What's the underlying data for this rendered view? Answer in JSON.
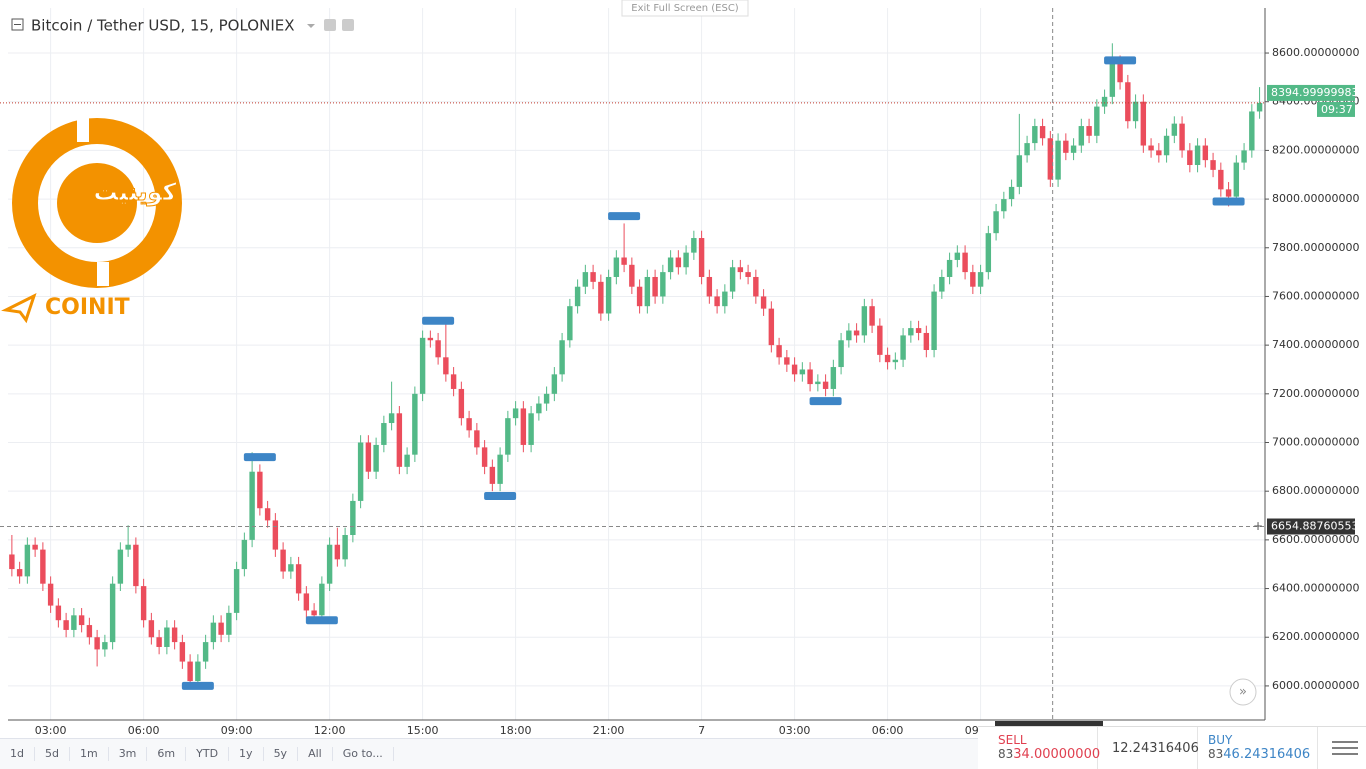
{
  "header": {
    "title": "Bitcoin / Tether USD, 15, POLONIEX",
    "exit_fullscreen": "Exit Full Screen (ESC)"
  },
  "logo": {
    "name": "COINIT",
    "persian": "کوینیت"
  },
  "chart_data": {
    "type": "candlestick",
    "up_color": "#53b987",
    "down_color": "#eb4d5c",
    "marker_color": "#3d85c6",
    "xlim": [
      -0.5,
      161.7
    ],
    "ylim": [
      5860,
      8785
    ],
    "yticks": [
      {
        "value": 6000,
        "label": "6000.00000000"
      },
      {
        "value": 6200,
        "label": "6200.00000000"
      },
      {
        "value": 6400,
        "label": "6400.00000000"
      },
      {
        "value": 6600,
        "label": "6600.00000000"
      },
      {
        "value": 6800,
        "label": "6800.00000000"
      },
      {
        "value": 7000,
        "label": "7000.00000000"
      },
      {
        "value": 7200,
        "label": "7200.00000000"
      },
      {
        "value": 7400,
        "label": "7400.00000000"
      },
      {
        "value": 7600,
        "label": "7600.00000000"
      },
      {
        "value": 7800,
        "label": "7800.00000000"
      },
      {
        "value": 8000,
        "label": "8000.00000000"
      },
      {
        "value": 8200,
        "label": "8200.00000000"
      },
      {
        "value": 8400,
        "label": "8400.00000000"
      },
      {
        "value": 8600,
        "label": "8600.00000000"
      }
    ],
    "xticks": [
      {
        "value": 5,
        "label": "03:00"
      },
      {
        "value": 17,
        "label": "06:00"
      },
      {
        "value": 29,
        "label": "09:00"
      },
      {
        "value": 41,
        "label": "12:00"
      },
      {
        "value": 53,
        "label": "15:00"
      },
      {
        "value": 65,
        "label": "18:00"
      },
      {
        "value": 77,
        "label": "21:00"
      },
      {
        "value": 89,
        "label": "7"
      },
      {
        "value": 101,
        "label": "03:00"
      },
      {
        "value": 113,
        "label": "06:00"
      },
      {
        "value": 125,
        "label": "09:00"
      }
    ],
    "grid": true,
    "last_price": 8394.99999983,
    "countdown": "09:37",
    "crosshair": {
      "price": 6654.88760553,
      "index": 134.3
    },
    "markers": [
      [
        24,
        6000
      ],
      [
        32,
        6940
      ],
      [
        40,
        6270
      ],
      [
        55,
        7500
      ],
      [
        63,
        6780
      ],
      [
        79,
        7930
      ],
      [
        105,
        7170
      ],
      [
        143,
        8570
      ],
      [
        157,
        7990
      ]
    ],
    "candles": [
      [
        6540,
        6620,
        6450,
        6480
      ],
      [
        6480,
        6510,
        6420,
        6450
      ],
      [
        6450,
        6610,
        6420,
        6580
      ],
      [
        6580,
        6610,
        6530,
        6560
      ],
      [
        6560,
        6590,
        6390,
        6420
      ],
      [
        6420,
        6450,
        6300,
        6330
      ],
      [
        6330,
        6360,
        6240,
        6270
      ],
      [
        6270,
        6300,
        6200,
        6230
      ],
      [
        6230,
        6320,
        6200,
        6290
      ],
      [
        6290,
        6320,
        6220,
        6250
      ],
      [
        6250,
        6280,
        6170,
        6200
      ],
      [
        6200,
        6230,
        6080,
        6150
      ],
      [
        6150,
        6210,
        6120,
        6180
      ],
      [
        6180,
        6450,
        6150,
        6420
      ],
      [
        6420,
        6590,
        6390,
        6560
      ],
      [
        6560,
        6660,
        6530,
        6580
      ],
      [
        6580,
        6610,
        6380,
        6410
      ],
      [
        6410,
        6440,
        6240,
        6270
      ],
      [
        6270,
        6300,
        6170,
        6200
      ],
      [
        6200,
        6230,
        6130,
        6160
      ],
      [
        6160,
        6270,
        6130,
        6240
      ],
      [
        6240,
        6270,
        6150,
        6180
      ],
      [
        6180,
        6210,
        6070,
        6100
      ],
      [
        6100,
        6130,
        5990,
        6020
      ],
      [
        6020,
        6130,
        5990,
        6100
      ],
      [
        6100,
        6210,
        6070,
        6180
      ],
      [
        6180,
        6290,
        6150,
        6260
      ],
      [
        6260,
        6290,
        6180,
        6210
      ],
      [
        6210,
        6330,
        6180,
        6300
      ],
      [
        6300,
        6510,
        6270,
        6480
      ],
      [
        6480,
        6630,
        6450,
        6600
      ],
      [
        6600,
        6960,
        6570,
        6880
      ],
      [
        6880,
        6910,
        6700,
        6730
      ],
      [
        6730,
        6760,
        6650,
        6680
      ],
      [
        6680,
        6710,
        6530,
        6560
      ],
      [
        6560,
        6590,
        6440,
        6470
      ],
      [
        6470,
        6530,
        6440,
        6500
      ],
      [
        6500,
        6530,
        6350,
        6380
      ],
      [
        6380,
        6410,
        6280,
        6310
      ],
      [
        6310,
        6340,
        6260,
        6290
      ],
      [
        6290,
        6450,
        6260,
        6420
      ],
      [
        6420,
        6610,
        6390,
        6580
      ],
      [
        6580,
        6650,
        6490,
        6520
      ],
      [
        6520,
        6650,
        6490,
        6620
      ],
      [
        6620,
        6790,
        6590,
        6760
      ],
      [
        6760,
        7030,
        6730,
        7000
      ],
      [
        7000,
        7030,
        6850,
        6880
      ],
      [
        6880,
        7020,
        6850,
        6990
      ],
      [
        6990,
        7110,
        6960,
        7080
      ],
      [
        7080,
        7250,
        7050,
        7120
      ],
      [
        7120,
        7150,
        6870,
        6900
      ],
      [
        6900,
        6980,
        6870,
        6950
      ],
      [
        6950,
        7230,
        6920,
        7200
      ],
      [
        7200,
        7460,
        7170,
        7430
      ],
      [
        7430,
        7460,
        7390,
        7420
      ],
      [
        7420,
        7450,
        7320,
        7350
      ],
      [
        7350,
        7500,
        7250,
        7280
      ],
      [
        7280,
        7310,
        7190,
        7220
      ],
      [
        7220,
        7250,
        7070,
        7100
      ],
      [
        7100,
        7130,
        7020,
        7050
      ],
      [
        7050,
        7080,
        6950,
        6980
      ],
      [
        6980,
        7010,
        6870,
        6900
      ],
      [
        6900,
        6930,
        6800,
        6830
      ],
      [
        6830,
        6980,
        6800,
        6950
      ],
      [
        6950,
        7130,
        6920,
        7100
      ],
      [
        7100,
        7170,
        7070,
        7140
      ],
      [
        7140,
        7170,
        6960,
        6990
      ],
      [
        6990,
        7150,
        6960,
        7120
      ],
      [
        7120,
        7190,
        7090,
        7160
      ],
      [
        7160,
        7230,
        7130,
        7200
      ],
      [
        7200,
        7310,
        7170,
        7280
      ],
      [
        7280,
        7450,
        7250,
        7420
      ],
      [
        7420,
        7590,
        7390,
        7560
      ],
      [
        7560,
        7670,
        7530,
        7640
      ],
      [
        7640,
        7730,
        7610,
        7700
      ],
      [
        7700,
        7730,
        7630,
        7660
      ],
      [
        7660,
        7690,
        7500,
        7530
      ],
      [
        7530,
        7710,
        7500,
        7680
      ],
      [
        7680,
        7790,
        7650,
        7760
      ],
      [
        7760,
        7900,
        7700,
        7730
      ],
      [
        7730,
        7760,
        7610,
        7640
      ],
      [
        7640,
        7670,
        7530,
        7560
      ],
      [
        7560,
        7710,
        7530,
        7680
      ],
      [
        7680,
        7710,
        7570,
        7600
      ],
      [
        7600,
        7730,
        7570,
        7700
      ],
      [
        7700,
        7790,
        7670,
        7760
      ],
      [
        7760,
        7790,
        7690,
        7720
      ],
      [
        7720,
        7810,
        7690,
        7780
      ],
      [
        7780,
        7870,
        7750,
        7840
      ],
      [
        7840,
        7870,
        7650,
        7680
      ],
      [
        7680,
        7710,
        7570,
        7600
      ],
      [
        7600,
        7630,
        7530,
        7560
      ],
      [
        7560,
        7650,
        7530,
        7620
      ],
      [
        7620,
        7750,
        7590,
        7720
      ],
      [
        7720,
        7750,
        7670,
        7700
      ],
      [
        7700,
        7730,
        7650,
        7680
      ],
      [
        7680,
        7710,
        7570,
        7600
      ],
      [
        7600,
        7630,
        7520,
        7550
      ],
      [
        7550,
        7580,
        7370,
        7400
      ],
      [
        7400,
        7430,
        7320,
        7350
      ],
      [
        7350,
        7380,
        7290,
        7320
      ],
      [
        7320,
        7350,
        7250,
        7280
      ],
      [
        7280,
        7330,
        7250,
        7300
      ],
      [
        7300,
        7330,
        7210,
        7240
      ],
      [
        7240,
        7280,
        7210,
        7250
      ],
      [
        7250,
        7280,
        7190,
        7220
      ],
      [
        7220,
        7340,
        7190,
        7310
      ],
      [
        7310,
        7450,
        7280,
        7420
      ],
      [
        7420,
        7490,
        7390,
        7460
      ],
      [
        7460,
        7490,
        7410,
        7440
      ],
      [
        7440,
        7590,
        7410,
        7560
      ],
      [
        7560,
        7590,
        7450,
        7480
      ],
      [
        7480,
        7510,
        7330,
        7360
      ],
      [
        7360,
        7390,
        7300,
        7330
      ],
      [
        7330,
        7370,
        7300,
        7340
      ],
      [
        7340,
        7470,
        7310,
        7440
      ],
      [
        7440,
        7500,
        7410,
        7470
      ],
      [
        7470,
        7500,
        7420,
        7450
      ],
      [
        7450,
        7480,
        7350,
        7380
      ],
      [
        7380,
        7650,
        7350,
        7620
      ],
      [
        7620,
        7710,
        7590,
        7680
      ],
      [
        7680,
        7780,
        7650,
        7750
      ],
      [
        7750,
        7810,
        7720,
        7780
      ],
      [
        7780,
        7810,
        7670,
        7700
      ],
      [
        7700,
        7730,
        7610,
        7640
      ],
      [
        7640,
        7730,
        7610,
        7700
      ],
      [
        7700,
        7890,
        7670,
        7860
      ],
      [
        7860,
        7980,
        7830,
        7950
      ],
      [
        7950,
        8030,
        7920,
        8000
      ],
      [
        8000,
        8080,
        7970,
        8050
      ],
      [
        8050,
        8350,
        8020,
        8180
      ],
      [
        8180,
        8260,
        8150,
        8230
      ],
      [
        8230,
        8330,
        8200,
        8300
      ],
      [
        8300,
        8330,
        8220,
        8250
      ],
      [
        8250,
        8280,
        8050,
        8080
      ],
      [
        8080,
        8270,
        8050,
        8240
      ],
      [
        8240,
        8270,
        8160,
        8190
      ],
      [
        8190,
        8250,
        8160,
        8220
      ],
      [
        8220,
        8330,
        8190,
        8300
      ],
      [
        8300,
        8330,
        8230,
        8260
      ],
      [
        8260,
        8410,
        8230,
        8380
      ],
      [
        8380,
        8450,
        8350,
        8420
      ],
      [
        8420,
        8640,
        8390,
        8560
      ],
      [
        8560,
        8590,
        8450,
        8480
      ],
      [
        8480,
        8510,
        8290,
        8320
      ],
      [
        8320,
        8430,
        8290,
        8400
      ],
      [
        8400,
        8430,
        8190,
        8220
      ],
      [
        8220,
        8250,
        8170,
        8200
      ],
      [
        8200,
        8230,
        8150,
        8180
      ],
      [
        8180,
        8290,
        8150,
        8260
      ],
      [
        8260,
        8340,
        8230,
        8310
      ],
      [
        8310,
        8340,
        8170,
        8200
      ],
      [
        8200,
        8230,
        8110,
        8140
      ],
      [
        8140,
        8250,
        8110,
        8220
      ],
      [
        8220,
        8250,
        8130,
        8160
      ],
      [
        8160,
        8190,
        8090,
        8120
      ],
      [
        8120,
        8150,
        8010,
        8040
      ],
      [
        8040,
        8070,
        7970,
        8010
      ],
      [
        8010,
        8180,
        7980,
        8150
      ],
      [
        8150,
        8230,
        8120,
        8200
      ],
      [
        8200,
        8390,
        8170,
        8360
      ],
      [
        8360,
        8460,
        8330,
        8395
      ]
    ]
  },
  "timeframes": [
    "1d",
    "5d",
    "1m",
    "3m",
    "6m",
    "YTD",
    "1y",
    "5y",
    "All",
    "Go to..."
  ],
  "trade": {
    "sell_label": "SELL",
    "sell_price": [
      "83",
      "34.00000000"
    ],
    "spread": "12.24316406",
    "buy_label": "BUY",
    "buy_price": [
      "83",
      "46.24316406"
    ]
  }
}
